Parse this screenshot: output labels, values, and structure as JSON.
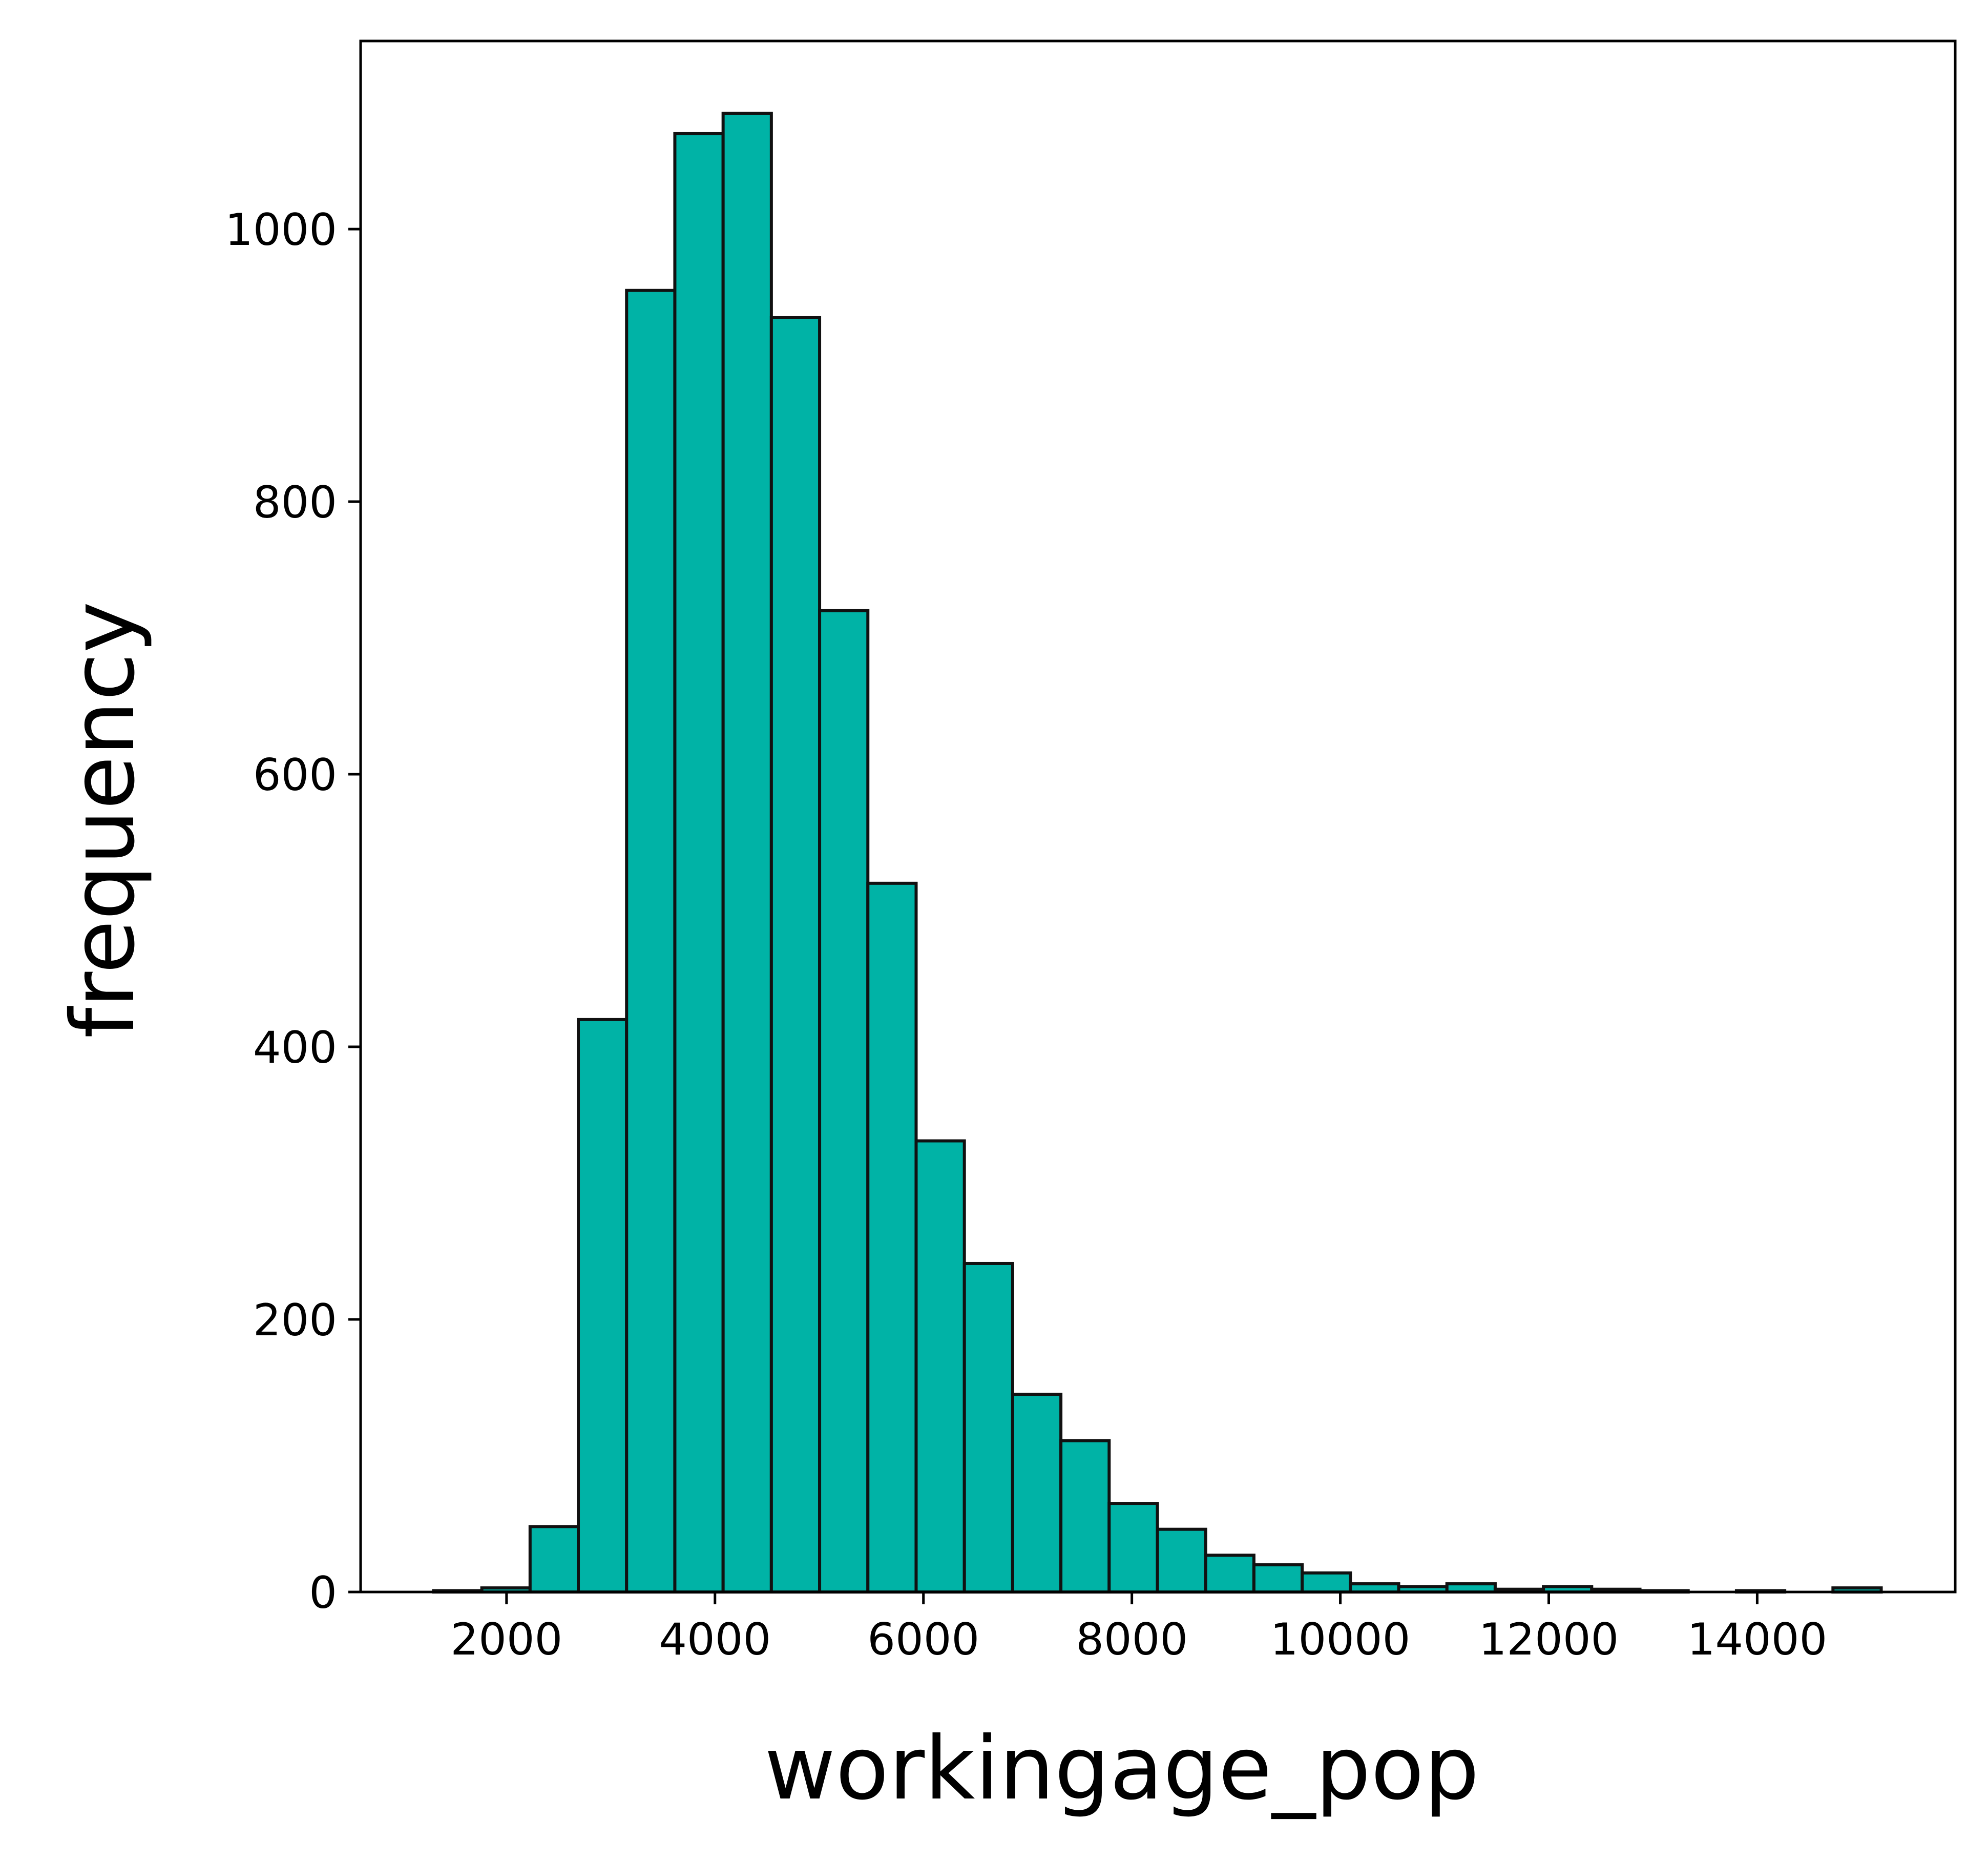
{
  "chart_data": {
    "type": "bar",
    "xlabel": "workingage_pop",
    "ylabel": "frequency",
    "xlim": [
      600,
      15900
    ],
    "ylim": [
      0,
      1138
    ],
    "bar_edges": [
      1300,
      1763,
      2226,
      2689,
      3152,
      3615,
      4078,
      4541,
      5004,
      5467,
      5930,
      6393,
      6856,
      7319,
      7782,
      8245,
      8708,
      9171,
      9634,
      10097,
      10560,
      11023,
      11486,
      11949,
      12412,
      12875,
      13338,
      13801,
      14264,
      14727,
      15190
    ],
    "values": [
      1,
      3,
      48,
      420,
      955,
      1070,
      1085,
      935,
      720,
      520,
      331,
      241,
      145,
      111,
      65,
      46,
      27,
      20,
      14,
      6,
      4,
      6,
      2,
      4,
      2,
      1,
      0,
      1,
      0,
      3
    ],
    "x_ticks": [
      "2000",
      "4000",
      "6000",
      "8000",
      "10000",
      "12000",
      "14000"
    ],
    "y_ticks": [
      "0",
      "200",
      "400",
      "600",
      "800",
      "1000"
    ],
    "bar_color": "#00B3A6",
    "edge_color": "#111111",
    "grid": false
  }
}
